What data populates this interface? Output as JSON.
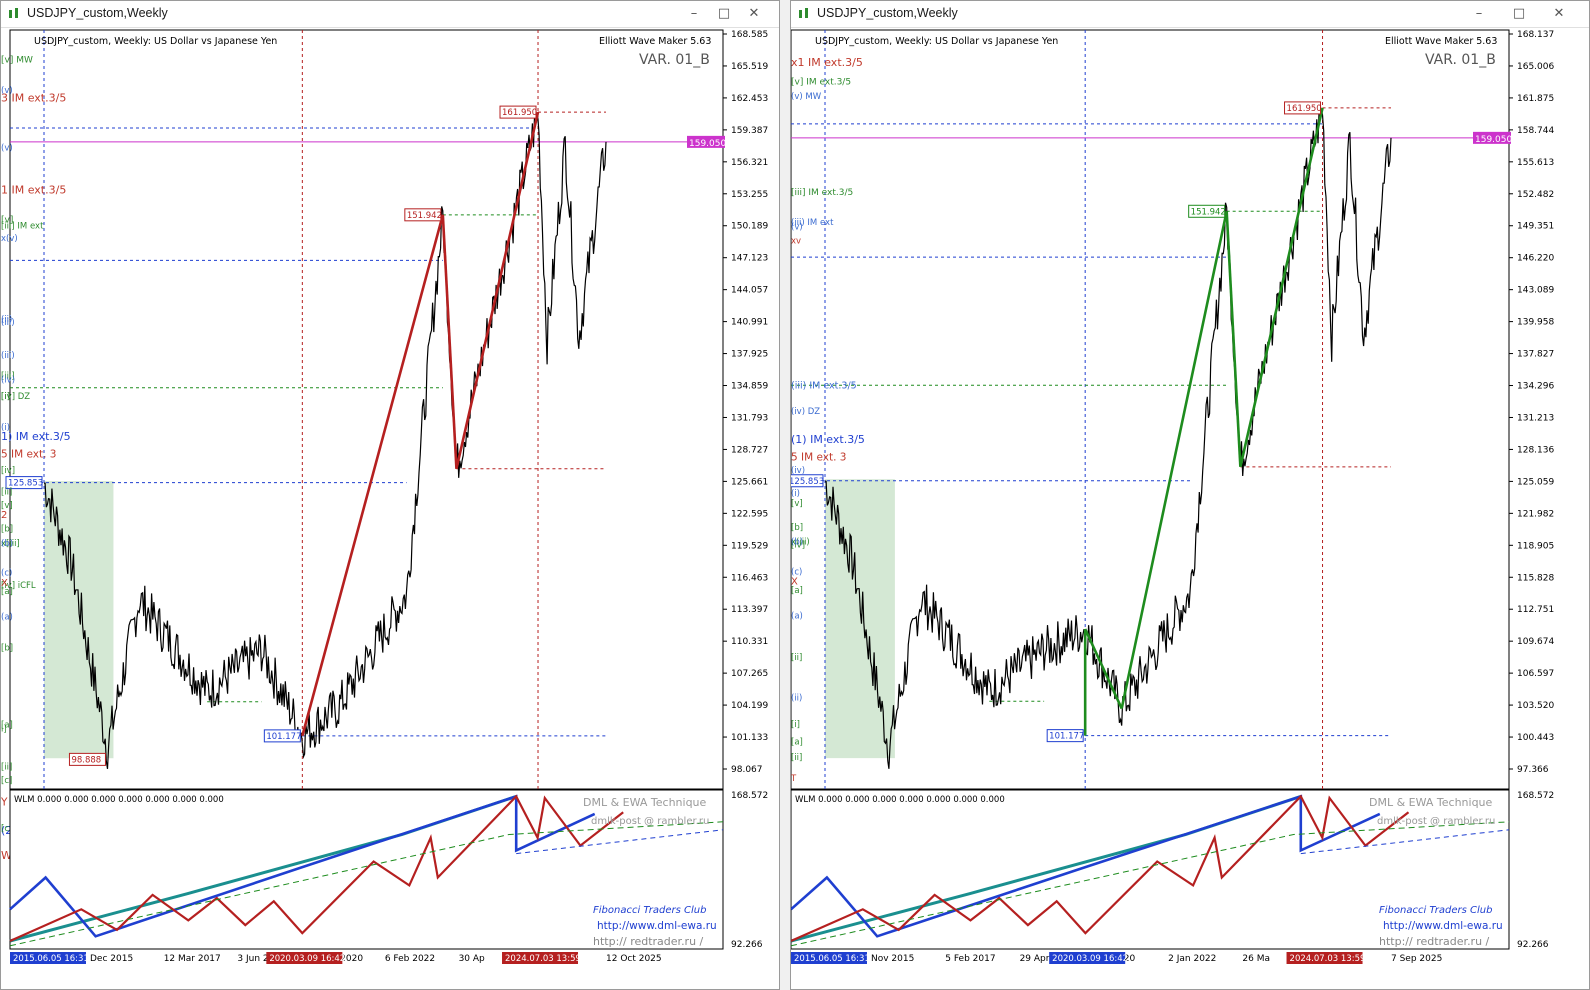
{
  "window_left": {
    "title": "USDJPY_custom,Weekly",
    "chart_header": "USDJPY_custom, Weekly:  US Dollar vs Japanese Yen",
    "indicator_name": "Elliott Wave Maker 5.63",
    "variant": "VAR. 01_B",
    "price_axis": [
      "168.585",
      "165.519",
      "162.453",
      "159.387",
      "156.321",
      "153.255",
      "150.189",
      "147.123",
      "144.057",
      "140.991",
      "137.925",
      "134.859",
      "131.793",
      "128.727",
      "125.661",
      "122.595",
      "119.529",
      "116.463",
      "113.397",
      "110.331",
      "107.265",
      "104.199",
      "101.133",
      "98.067"
    ],
    "current_price": "159.050",
    "price_tags": [
      {
        "label": "161.950",
        "kind": "red"
      },
      {
        "label": "151.942",
        "kind": "red"
      },
      {
        "label": "125.853",
        "kind": "blue"
      },
      {
        "label": "101.177",
        "kind": "blue"
      },
      {
        "label": "98.888",
        "kind": "red"
      }
    ],
    "wave_labels": [
      {
        "text": "3 IM ext.3/5",
        "color": "#c0392b"
      },
      {
        "text": "[v] MW",
        "color": "#2e8b2e"
      },
      {
        "text": "(v)",
        "color": "#3a6bd0"
      },
      {
        "text": "(v)",
        "color": "#3a6bd0"
      },
      {
        "text": "1 IM ext.3/5",
        "color": "#c0392b"
      },
      {
        "text": "[v]",
        "color": "#2e8b2e"
      },
      {
        "text": "[iii] IM ext",
        "color": "#2e8b2e"
      },
      {
        "text": "x(v)",
        "color": "#3a6bd0"
      },
      {
        "text": "(iii)",
        "color": "#3a6bd0"
      },
      {
        "text": "(ii)",
        "color": "#3a6bd0"
      },
      {
        "text": "(iii)",
        "color": "#3a6bd0"
      },
      {
        "text": "[iii]",
        "color": "#2e8b2e"
      },
      {
        "text": "[i]",
        "color": "#2e8b2e"
      },
      {
        "text": "[iv] DZ",
        "color": "#2e8b2e"
      },
      {
        "text": "(iv)",
        "color": "#3a6bd0"
      },
      {
        "text": "(i)",
        "color": "#3a6bd0"
      },
      {
        "text": "[iv]",
        "color": "#2e8b2e"
      },
      {
        "text": "[ii]",
        "color": "#2e8b2e"
      },
      {
        "text": "2",
        "color": "#c0392b"
      },
      {
        "text": "1) IM ext.3/5",
        "color": "#1f3fd0"
      },
      {
        "text": "5 IM ext. 3",
        "color": "#c0392b"
      },
      {
        "text": "[v]",
        "color": "#2e8b2e"
      },
      {
        "text": "[b]",
        "color": "#2e8b2e"
      },
      {
        "text": "x[iii]",
        "color": "#2e8b2e"
      },
      {
        "text": "(b)",
        "color": "#3a6bd0"
      },
      {
        "text": "(c)",
        "color": "#3a6bd0"
      },
      {
        "text": "[iv] iCFL",
        "color": "#2e8b2e"
      },
      {
        "text": "[a]",
        "color": "#2e8b2e"
      },
      {
        "text": "(a)",
        "color": "#3a6bd0"
      },
      {
        "text": "X",
        "color": "#c0392b"
      },
      {
        "text": "[b]",
        "color": "#2e8b2e"
      },
      {
        "text": "[a]",
        "color": "#2e8b2e"
      },
      {
        "text": "[ii]",
        "color": "#2e8b2e"
      },
      {
        "text": "[c]",
        "color": "#2e8b2e"
      },
      {
        "text": "Y CrZZ",
        "color": "#c0392b"
      },
      {
        "text": "(2) DT",
        "color": "#1f3fd0"
      },
      {
        "text": "[c]",
        "color": "#2e8b2e"
      },
      {
        "text": "W iCeZZ",
        "color": "#c0392b"
      },
      {
        "text": "i]",
        "color": "#2e8b2e"
      }
    ],
    "date_axis": [
      "Dec 2015",
      "12 Mar 2017",
      "3 Jun 2018",
      "5 Nov 2020",
      "6 Feb 2022",
      "30 Ap",
      "24",
      "12 Oct 2025"
    ],
    "date_tags": [
      {
        "label": "2015.06.05 16:31",
        "kind": "blue"
      },
      {
        "label": "2020.03.09 16:42",
        "kind": "red"
      },
      {
        "label": "2024.07.03 13:59",
        "kind": "red"
      }
    ],
    "sub_header": "WLM 0.000 0.000 0.000 0.000 0.000 0.000 0.000",
    "sub_axis": [
      "168.572",
      "92.266"
    ],
    "watermark": [
      "DML & EWA Technique",
      "dmlk-post @ rambler.ru",
      "Fibonacci    Traders    Club",
      "http://www.dml-ewa.ru",
      "http:// redtrader.ru /"
    ]
  },
  "window_right": {
    "title": "USDJPY_custom,Weekly",
    "chart_header": "USDJPY_custom, Weekly:  US Dollar vs Japanese Yen",
    "indicator_name": "Elliott Wave Maker 5.63",
    "variant": "VAR. 01_B",
    "price_axis": [
      "168.137",
      "165.006",
      "161.875",
      "158.744",
      "155.613",
      "152.482",
      "149.351",
      "146.220",
      "143.089",
      "139.958",
      "137.827",
      "134.296",
      "131.213",
      "128.136",
      "125.059",
      "121.982",
      "118.905",
      "115.828",
      "112.751",
      "109.674",
      "106.597",
      "103.520",
      "100.443",
      "97.366"
    ],
    "current_price": "159.050",
    "price_tags": [
      {
        "label": "161.950",
        "kind": "red"
      },
      {
        "label": "151.942",
        "kind": "green"
      },
      {
        "label": "125.853",
        "kind": "blue"
      },
      {
        "label": "101.177",
        "kind": "blue"
      }
    ],
    "wave_labels": [
      {
        "text": "x1 IM ext.3/5",
        "color": "#c0392b"
      },
      {
        "text": "[v] IM ext.3/5",
        "color": "#2e8b2e"
      },
      {
        "text": "(v) MW",
        "color": "#3a6bd0"
      },
      {
        "text": "[iii] IM ext.3/5",
        "color": "#2e8b2e"
      },
      {
        "text": "(v)",
        "color": "#3a6bd0"
      },
      {
        "text": "(iii) IM ext",
        "color": "#3a6bd0"
      },
      {
        "text": "xv",
        "color": "#c0392b"
      },
      {
        "text": "(iii) IM ext.3/5",
        "color": "#3a6bd0"
      },
      {
        "text": "(iv) DZ",
        "color": "#3a6bd0"
      },
      {
        "text": "(iv)",
        "color": "#3a6bd0"
      },
      {
        "text": "(i)",
        "color": "#3a6bd0"
      },
      {
        "text": "[iv]",
        "color": "#2e8b2e"
      },
      {
        "text": "(1) IM ext.3/5",
        "color": "#1f3fd0"
      },
      {
        "text": "5 IM ext. 3",
        "color": "#c0392b"
      },
      {
        "text": "[v]",
        "color": "#2e8b2e"
      },
      {
        "text": "[b]",
        "color": "#2e8b2e"
      },
      {
        "text": "x(iii)",
        "color": "#2e8b2e"
      },
      {
        "text": "(b)",
        "color": "#3a6bd0"
      },
      {
        "text": "(c)",
        "color": "#3a6bd0"
      },
      {
        "text": "[a]",
        "color": "#2e8b2e"
      },
      {
        "text": "(a)",
        "color": "#3a6bd0"
      },
      {
        "text": "X",
        "color": "#c0392b"
      },
      {
        "text": "[ii]",
        "color": "#2e8b2e"
      },
      {
        "text": "(ii)",
        "color": "#3a6bd0"
      },
      {
        "text": "[ii]",
        "color": "#2e8b2e"
      },
      {
        "text": "[a]",
        "color": "#2e8b2e"
      },
      {
        "text": "[c]",
        "color": "#2e8b2e"
      },
      {
        "text": "Y CrZZ",
        "color": "#c0392b"
      },
      {
        "text": "(2) DT",
        "color": "#1f3fd0"
      },
      {
        "text": "[c]",
        "color": "#2e8b2e"
      },
      {
        "text": "W iCeZZ",
        "color": "#c0392b"
      },
      {
        "text": "T",
        "color": "#c0392b"
      },
      {
        "text": "[i]",
        "color": "#2e8b2e"
      }
    ],
    "date_axis": [
      "Nov 2015",
      "5 Feb 2017",
      "29 Apr 2018",
      "Oct 2020",
      "2 Jan 2022",
      "26 Ma",
      "24",
      "7 Sep 2025"
    ],
    "date_tags": [
      {
        "label": "2015.06.05 16:31",
        "kind": "blue"
      },
      {
        "label": "2020.03.09 16:42",
        "kind": "blue"
      },
      {
        "label": "2024.07.03 13:59",
        "kind": "red"
      }
    ],
    "sub_header": "WLM 0.000 0.000 0.000 0.000 0.000 0.000 0.000",
    "sub_axis": [
      "168.572",
      "92.266"
    ],
    "watermark": [
      "DML & EWA Technique",
      "dmlk-post @ rambler.ru",
      "Fibonacci    Traders    Club",
      "http://www.dml-ewa.ru",
      "http:// redtrader.ru /"
    ]
  },
  "chart_data": [
    {
      "type": "line",
      "ylim": [
        97.366,
        168.585
      ],
      "x": [
        "2015-06",
        "2015-12",
        "2016-08",
        "2017-03",
        "2018-06",
        "2019-06",
        "2020-03",
        "2020-11",
        "2022-02",
        "2022-10",
        "2023-01",
        "2024-07",
        "2024-09",
        "2025-01",
        "2025-04",
        "2025-10"
      ],
      "series": [
        {
          "values": [
            125.85,
            118.0,
            100.0,
            114.5,
            105.5,
            109.5,
            101.2,
            104.0,
            115.0,
            151.9,
            127.2,
            161.95,
            139.6,
            158.9,
            140.0,
            159.05
          ]
        }
      ],
      "wave_lines": [
        {
          "color": "red",
          "from": [
            "2020-03",
            101.177
          ],
          "to": [
            "2022-10",
            151.942
          ]
        },
        {
          "color": "red",
          "from": [
            "2022-10",
            151.942
          ],
          "to": [
            "2023-01",
            127.2
          ]
        },
        {
          "color": "red",
          "from": [
            "2023-01",
            127.2
          ],
          "to": [
            "2024-07",
            161.95
          ]
        }
      ]
    },
    {
      "type": "line",
      "ylim": [
        97.366,
        168.137
      ],
      "x": [
        "2015-06",
        "2015-12",
        "2016-08",
        "2017-03",
        "2018-06",
        "2019-06",
        "2020-03",
        "2020-11",
        "2022-02",
        "2022-10",
        "2023-01",
        "2024-07",
        "2024-09",
        "2025-01",
        "2025-04",
        "2025-10"
      ],
      "series": [
        {
          "values": [
            125.85,
            118.0,
            100.0,
            114.5,
            105.5,
            109.5,
            111.5,
            103.8,
            115.0,
            151.9,
            127.2,
            161.95,
            139.6,
            158.9,
            140.0,
            159.05
          ]
        }
      ],
      "wave_lines": [
        {
          "color": "green",
          "from": [
            "2020-03",
            101.177
          ],
          "to": [
            "2020-03",
            111.5
          ]
        },
        {
          "color": "green",
          "from": [
            "2020-03",
            111.5
          ],
          "to": [
            "2020-11",
            103.8
          ]
        },
        {
          "color": "green",
          "from": [
            "2020-11",
            103.8
          ],
          "to": [
            "2022-10",
            151.942
          ]
        },
        {
          "color": "green",
          "from": [
            "2022-10",
            151.942
          ],
          "to": [
            "2023-01",
            127.2
          ]
        },
        {
          "color": "green",
          "from": [
            "2023-01",
            127.2
          ],
          "to": [
            "2024-07",
            161.95
          ]
        }
      ]
    }
  ],
  "colors": {
    "candle": "#000000",
    "current_line": "#cc33cc",
    "red_wave": "#b52020",
    "green_wave": "#1e8c1e",
    "blue_guide": "#1f3fd0",
    "zone": "#cfe6cf"
  }
}
